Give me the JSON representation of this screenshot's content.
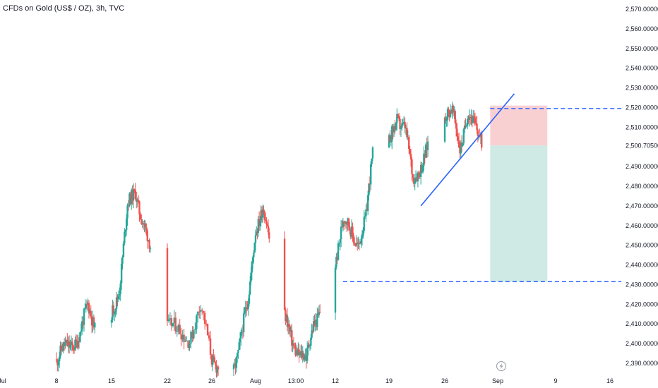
{
  "chart_data": {
    "type": "candlestick",
    "title": "CFDs on Gold (US$ / OZ), 3h, TVC",
    "colors": {
      "up": "#26a69a",
      "down": "#ef5350",
      "trendline": "#2962ff",
      "level_line": "#2962ff",
      "stop_zone": "#f9d0d2",
      "target_zone": "#cfe9e4"
    },
    "y_axis": {
      "ticks": [
        "2,570.00000",
        "2,560.00000",
        "2,550.00000",
        "2,540.00000",
        "2,530.00000",
        "2,520.00000",
        "2,510.00000",
        "2,500.70500",
        "2,490.00000",
        "2,480.00000",
        "2,470.00000",
        "2,460.00000",
        "2,450.00000",
        "2,440.00000",
        "2,430.00000",
        "2,420.00000",
        "2,410.00000",
        "2,400.00000",
        "2,390.00000"
      ],
      "range": [
        2386,
        2574
      ]
    },
    "x_axis": {
      "ticks": [
        "Jul",
        "8",
        "15",
        "22",
        "26",
        "Aug",
        "13:00",
        "12",
        "19",
        "26",
        "Sep",
        "9",
        "16"
      ]
    },
    "price_anchors": [
      {
        "date": "Jul 8",
        "price": 2392
      },
      {
        "date": "Jul 11",
        "price": 2405
      },
      {
        "date": "Jul 12",
        "price": 2418
      },
      {
        "date": "Jul 14",
        "price": 2400
      },
      {
        "date": "Jul 16",
        "price": 2430
      },
      {
        "date": "Jul 17",
        "price": 2468
      },
      {
        "date": "Jul 18",
        "price": 2478
      },
      {
        "date": "Jul 19",
        "price": 2462
      },
      {
        "date": "Jul 22",
        "price": 2408
      },
      {
        "date": "Jul 24",
        "price": 2404
      },
      {
        "date": "Jul 25",
        "price": 2418
      },
      {
        "date": "Jul 26",
        "price": 2392
      },
      {
        "date": "Jul 29",
        "price": 2388
      },
      {
        "date": "Jul 31",
        "price": 2420
      },
      {
        "date": "Aug 1",
        "price": 2460
      },
      {
        "date": "Aug 2",
        "price": 2468
      },
      {
        "date": "Aug 5",
        "price": 2412
      },
      {
        "date": "Aug 6",
        "price": 2402
      },
      {
        "date": "Aug 8",
        "price": 2390
      },
      {
        "date": "Aug 9",
        "price": 2412
      },
      {
        "date": "Aug 11",
        "price": 2424
      },
      {
        "date": "Aug 13",
        "price": 2462
      },
      {
        "date": "Aug 15",
        "price": 2452
      },
      {
        "date": "Aug 16",
        "price": 2462
      },
      {
        "date": "Aug 17",
        "price": 2502
      },
      {
        "date": "Aug 19",
        "price": 2500
      },
      {
        "date": "Aug 20",
        "price": 2516
      },
      {
        "date": "Aug 21",
        "price": 2510
      },
      {
        "date": "Aug 22",
        "price": 2482
      },
      {
        "date": "Aug 24",
        "price": 2502
      },
      {
        "date": "Aug 26",
        "price": 2518
      },
      {
        "date": "Aug 27",
        "price": 2516
      },
      {
        "date": "Aug 28",
        "price": 2500
      },
      {
        "date": "Aug 29",
        "price": 2518
      },
      {
        "date": "Aug 30",
        "price": 2508
      },
      {
        "date": "Sep 1",
        "price": 2500
      }
    ],
    "trendline": {
      "from": {
        "date": "Aug 23",
        "price": 2470
      },
      "to": {
        "date": "Sep 4",
        "price": 2527
      }
    },
    "horizontal_levels": [
      {
        "date_from": "Sep 1",
        "price": 2519.5
      },
      {
        "date_from": "Aug 13",
        "price": 2431.5
      }
    ],
    "position": {
      "date_from": "Sep 1",
      "date_to": "Sep 8",
      "entry": 2500.705,
      "stop": 2521,
      "target": 2431.5
    }
  }
}
